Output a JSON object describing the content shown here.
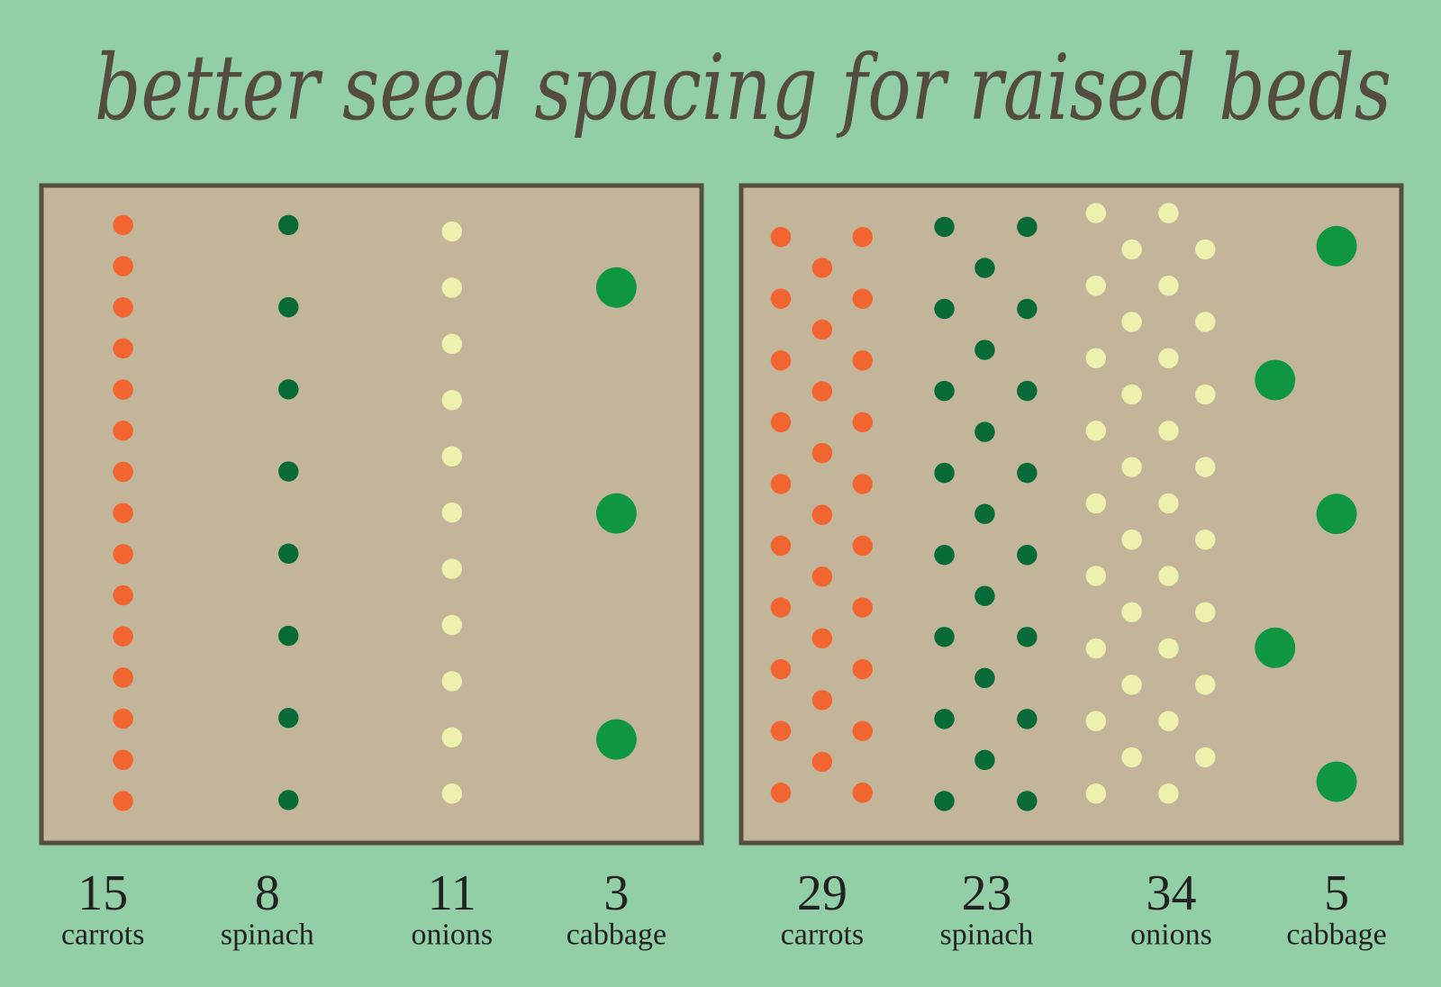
{
  "title": "better seed spacing for raised beds",
  "beds": [
    {
      "plants": [
        {
          "count": 15,
          "name": "carrots"
        },
        {
          "count": 8,
          "name": "spinach"
        },
        {
          "count": 11,
          "name": "onions"
        },
        {
          "count": 3,
          "name": "cabbage"
        }
      ]
    },
    {
      "plants": [
        {
          "count": 29,
          "name": "carrots"
        },
        {
          "count": 23,
          "name": "spinach"
        },
        {
          "count": 34,
          "name": "onions"
        },
        {
          "count": 5,
          "name": "cabbage"
        }
      ]
    }
  ]
}
